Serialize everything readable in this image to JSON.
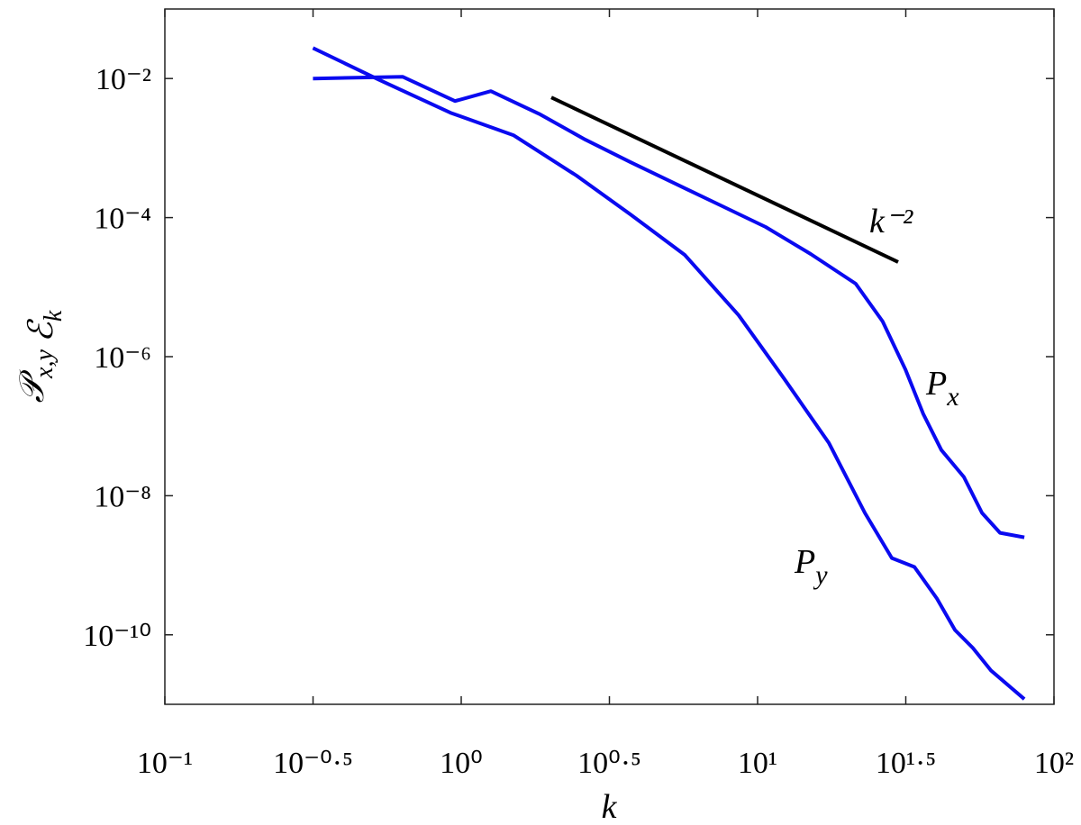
{
  "chart_data": {
    "type": "line",
    "xlabel": "k",
    "ylabel": [
      {
        "main": "𝒫",
        "sub": "x,y"
      },
      {
        "main": "ℰ",
        "sub": "k"
      }
    ],
    "xscale": "log",
    "yscale": "log",
    "xlim": [
      0.1,
      100
    ],
    "ylim": [
      1e-11,
      0.1
    ],
    "xticks": [
      {
        "value": 0.1,
        "label": "10⁻¹"
      },
      {
        "value": 0.31623,
        "label": "10⁻⁰·⁵"
      },
      {
        "value": 1,
        "label": "10⁰"
      },
      {
        "value": 3.1623,
        "label": "10⁰·⁵"
      },
      {
        "value": 10,
        "label": "10¹"
      },
      {
        "value": 31.623,
        "label": "10¹·⁵"
      },
      {
        "value": 100,
        "label": "10²"
      }
    ],
    "yticks": [
      {
        "value": 1e-10,
        "label": "10⁻¹⁰"
      },
      {
        "value": 1e-08,
        "label": "10⁻⁸"
      },
      {
        "value": 1e-06,
        "label": "10⁻⁶"
      },
      {
        "value": 0.0001,
        "label": "10⁻⁴"
      },
      {
        "value": 0.01,
        "label": "10⁻²"
      }
    ],
    "series": [
      {
        "label": {
          "main": "P",
          "sub": "x"
        },
        "color": "#0a0af0",
        "x": [
          0.316,
          0.634,
          0.953,
          1.259,
          1.849,
          2.624,
          3.724,
          5.284,
          7.499,
          10.64,
          15.1,
          21.43,
          26.42,
          31.48,
          36.22,
          41.69,
          49.66,
          57.15,
          65.77,
          79.43
        ],
        "values": [
          0.01,
          0.0106,
          0.00475,
          0.00659,
          0.00304,
          0.00132,
          0.000627,
          0.000306,
          0.00015,
          7.33e-05,
          3e-05,
          1.12e-05,
          3.21e-06,
          6.62e-07,
          1.5e-07,
          4.54e-08,
          1.86e-08,
          5.65e-09,
          2.93e-09,
          2.52e-09
        ]
      },
      {
        "label": {
          "main": "P",
          "sub": "y"
        },
        "color": "#0a0af0",
        "x": [
          0.316,
          0.525,
          0.92,
          1.5,
          2.449,
          3.724,
          5.675,
          8.63,
          12.25,
          17.38,
          23.01,
          28.38,
          33.81,
          40.27,
          46.34,
          53.21,
          61.24,
          79.43
        ],
        "values": [
          0.0275,
          0.0097,
          0.00322,
          0.00153,
          0.000401,
          0.000111,
          2.91e-05,
          3.96e-06,
          4.92e-07,
          5.77e-08,
          5.65e-09,
          1.27e-09,
          9.44e-10,
          3.33e-10,
          1.17e-10,
          6.47e-11,
          3.08e-11,
          1.19e-11
        ]
      },
      {
        "label": {
          "main": "k⁻²"
        },
        "color": "#000000",
        "x": [
          2.014,
          29.8
        ],
        "values": [
          0.00535,
          2.3e-05
        ]
      }
    ]
  }
}
